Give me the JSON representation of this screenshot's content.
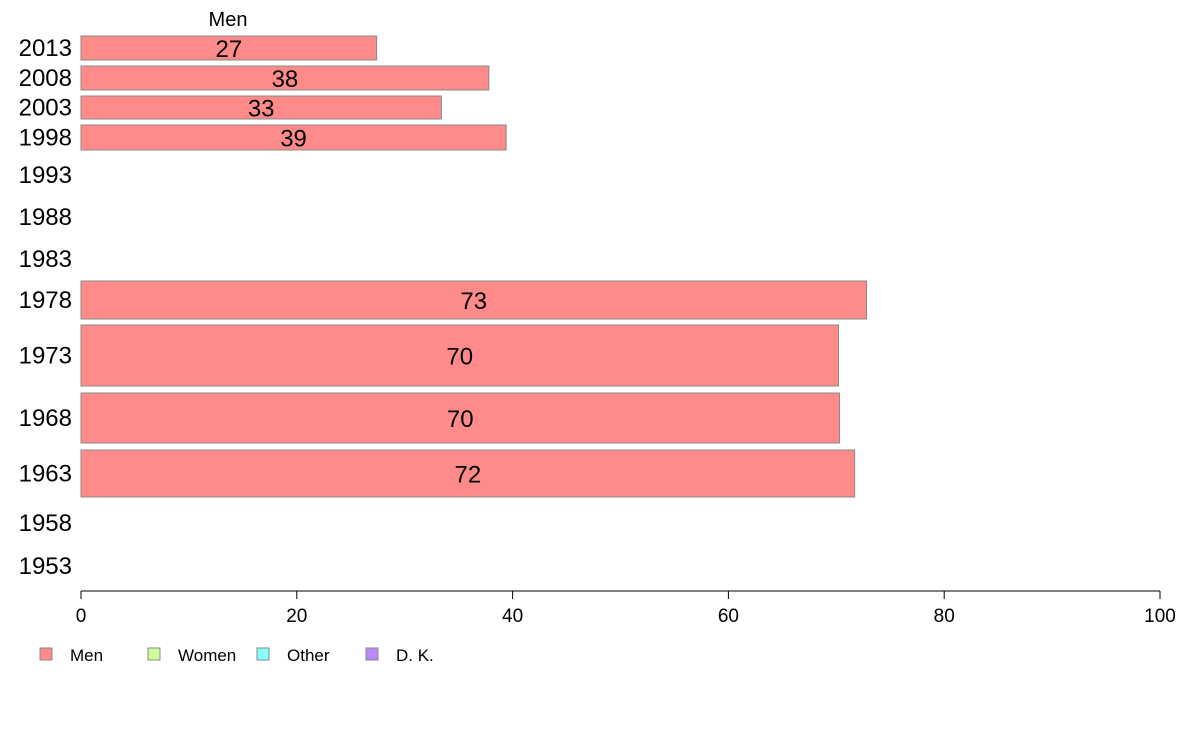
{
  "chart_data": {
    "type": "bar",
    "orientation": "horizontal",
    "series_title": "Men",
    "categories": [
      "2013",
      "2008",
      "2003",
      "1998",
      "1993",
      "1988",
      "1983",
      "1978",
      "1973",
      "1968",
      "1963",
      "1958",
      "1953"
    ],
    "series": [
      {
        "name": "Men",
        "color": "#ff8a8a",
        "values": [
          27.4,
          37.8,
          33.4,
          39.4,
          null,
          null,
          null,
          72.8,
          70.2,
          70.3,
          71.7,
          null,
          null
        ],
        "labels": [
          "27",
          "38",
          "33",
          "39",
          "",
          "",
          "",
          "73",
          "70",
          "70",
          "72",
          "",
          ""
        ]
      }
    ],
    "xlim": [
      0,
      100
    ],
    "xticks": [
      "0",
      "20",
      "40",
      "60",
      "80",
      "100"
    ],
    "xlabel": "",
    "ylabel": "",
    "grid": false,
    "legend_position": "bottom-left",
    "legend": [
      {
        "label": "Men",
        "color": "#ff8a8a"
      },
      {
        "label": "Women",
        "color": "#ccff99"
      },
      {
        "label": "Other",
        "color": "#88ffff"
      },
      {
        "label": "D. K.",
        "color": "#bb88ff"
      }
    ]
  }
}
